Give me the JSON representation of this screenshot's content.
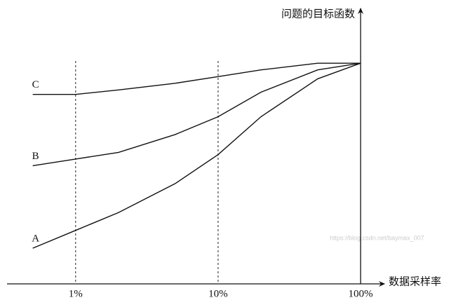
{
  "chart_data": {
    "type": "line",
    "x_label": "数据采样率",
    "y_label": "问题的目标函数",
    "x": [
      0.5,
      1,
      2,
      5,
      10,
      20,
      50,
      100
    ],
    "series": [
      {
        "name": "A",
        "color": "#111111",
        "values": [
          16,
          24,
          32,
          45,
          58,
          75,
          92,
          99
        ]
      },
      {
        "name": "B",
        "color": "#111111",
        "values": [
          53,
          56,
          59,
          67,
          75,
          86,
          96,
          99
        ]
      },
      {
        "name": "C",
        "color": "#111111",
        "values": [
          85,
          85,
          87,
          90,
          93,
          96,
          99,
          99
        ]
      }
    ],
    "xscale": "log",
    "xlim": [
      0.33,
      147
    ],
    "xticks": [
      {
        "value": 1,
        "label": "1%"
      },
      {
        "value": 10,
        "label": "10%"
      },
      {
        "value": 100,
        "label": "100%"
      }
    ],
    "ylim": [
      0,
      100
    ],
    "grid": true,
    "watermark": "https://blog.csdn.net/baymax_007"
  }
}
